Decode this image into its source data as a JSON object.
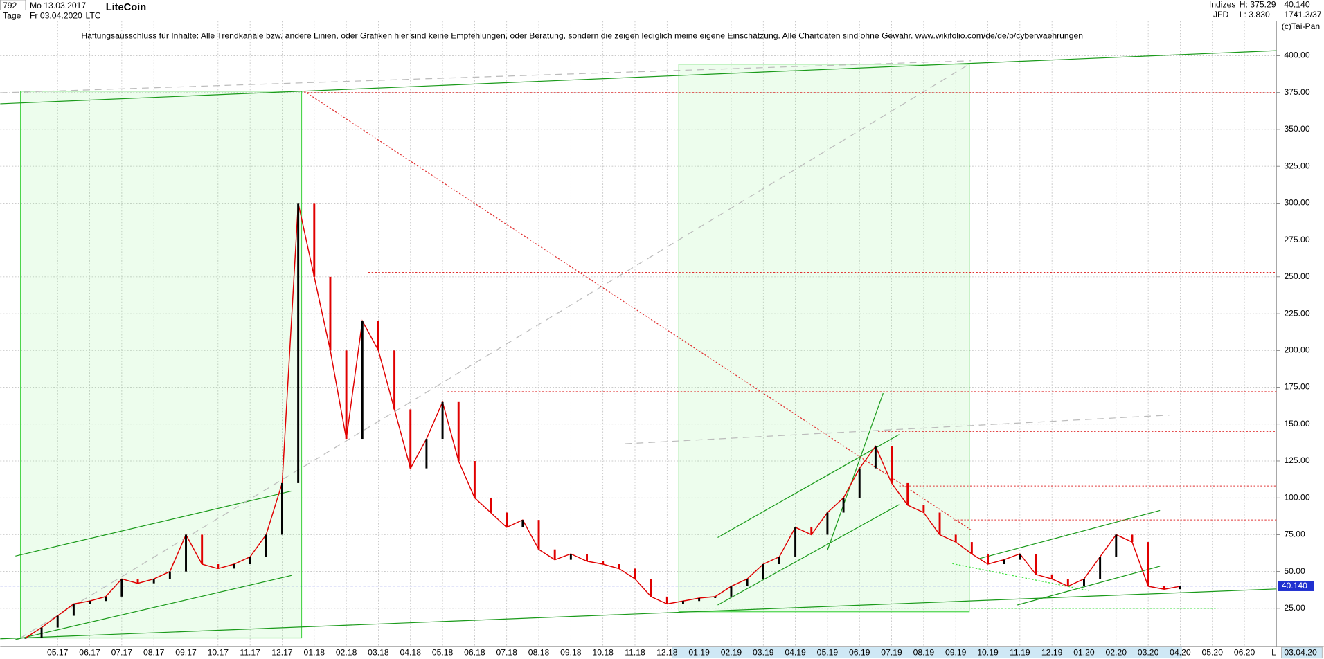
{
  "header": {
    "count": "792",
    "start_date": "Mo 13.03.2017",
    "period": "Tage",
    "end_date": "Fr 03.04.2020",
    "symbol": "LTC",
    "market": "Indizes",
    "broker": "JFD",
    "high": "H: 375.29",
    "low": "L: 3.830",
    "last": "40.140",
    "info": "1741.3/37",
    "copyright": "(c)Tai-Pan",
    "disclaimer": "Haftungsausschluss für Inhalte: Alle Trendkanäle bzw. andere Linien, oder Grafiken hier sind keine Empfehlungen, oder Beratung, sondern die zeigen lediglich meine eigene Einschätzung. Alle Chartdaten sind ohne Gewähr.  www.wikifolio.com/de/de/p/cyberwaehrungen",
    "date_box": "03.04.20",
    "scale_mode": "L"
  },
  "chart_data": {
    "type": "line",
    "title": "LiteCoin",
    "categories": [
      null,
      null,
      "05.17",
      null,
      "06.17",
      null,
      "07.17",
      null,
      "08.17",
      null,
      "09.17",
      null,
      "10.17",
      null,
      "11.17",
      null,
      "12.17",
      null,
      "01.18",
      null,
      "02.18",
      null,
      "03.18",
      null,
      "04.18",
      null,
      "05.18",
      null,
      "06.18",
      null,
      "07.18",
      null,
      "08.18",
      null,
      "09.18",
      null,
      "10.18",
      null,
      "11.18",
      null,
      "12.18",
      null,
      "01.19",
      null,
      "02.19",
      null,
      "03.19",
      null,
      "04.19",
      null,
      "05.19",
      null,
      "06.19",
      null,
      "07.19",
      null,
      "08.19",
      null,
      "09.19",
      null,
      "10.19",
      null,
      "11.19",
      null,
      "12.19",
      null,
      "01.20",
      null,
      "02.20",
      null,
      "03.20",
      null,
      "04.20",
      null,
      "05.20",
      null,
      "06.20"
    ],
    "series": [
      {
        "name": "LTC",
        "color": "#e00000",
        "values": [
          5,
          12,
          20,
          28,
          30,
          33,
          45,
          42,
          45,
          50,
          75,
          55,
          52,
          55,
          60,
          75,
          110,
          300,
          250,
          200,
          140,
          220,
          200,
          160,
          120,
          140,
          165,
          125,
          100,
          90,
          80,
          85,
          65,
          58,
          62,
          57,
          55,
          52,
          45,
          33,
          28,
          30,
          32,
          33,
          40,
          45,
          55,
          60,
          80,
          75,
          90,
          100,
          120,
          135,
          110,
          95,
          90,
          75,
          70,
          62,
          55,
          58,
          62,
          48,
          45,
          40,
          45,
          60,
          75,
          70,
          40,
          38,
          40,
          null,
          null,
          null,
          null
        ]
      }
    ],
    "last_price": {
      "value": 40.14,
      "label": "40.140"
    },
    "resistance_levels": [
      375,
      253,
      172,
      145,
      108,
      85
    ],
    "ylim": [
      4.4,
      437.8
    ],
    "yticks": [
      {
        "value": 25,
        "label": "25.00"
      },
      {
        "value": 50,
        "label": "50.00"
      },
      {
        "value": 75,
        "label": "75.00"
      },
      {
        "value": 100,
        "label": "100.00"
      },
      {
        "value": 125,
        "label": "125.00"
      },
      {
        "value": 150,
        "label": "150.00"
      },
      {
        "value": 175,
        "label": "175.00"
      },
      {
        "value": 200,
        "label": "200.00"
      },
      {
        "value": 225,
        "label": "225.00"
      },
      {
        "value": 250,
        "label": "250.00"
      },
      {
        "value": 275,
        "label": "275.00"
      },
      {
        "value": 300,
        "label": "300.00"
      },
      {
        "value": 325,
        "label": "325.00"
      },
      {
        "value": 350,
        "label": "350.00"
      },
      {
        "value": 375,
        "label": "375.00"
      },
      {
        "value": 400,
        "label": "400.00"
      }
    ],
    "grid": true
  }
}
